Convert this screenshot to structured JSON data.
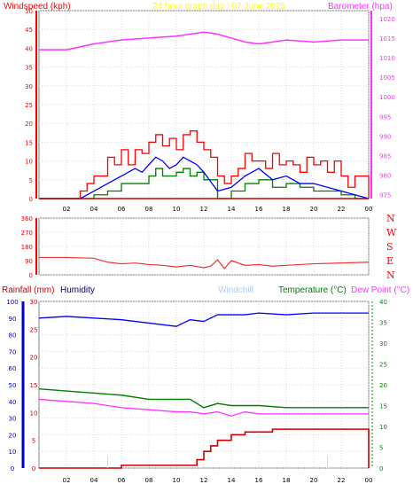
{
  "header": {
    "left_title": "Windspeed (kph)",
    "center_title": "24 hour graph day : 07 June 2025",
    "right_title": "Barometer (hpa)"
  },
  "bottom_header": {
    "rain_title": "Rainfall (mm)",
    "humidity_title": "Humidity",
    "windchill_title": "Windchill",
    "temp_title": "Temperature (°C)",
    "dew_title": "Dew Point (°C)"
  },
  "colors": {
    "wind_axis": "#ff3333",
    "baro": "#ff33ff",
    "gust": "#ff0000",
    "avg": "#0000ff",
    "green": "#008000",
    "center": "#ffff00",
    "windchill": "#aaccff",
    "rain": "#cc0000",
    "humidity_axis": "#0000cc",
    "temp_axis": "#008800",
    "grid": "#d8d8d8",
    "axis_text": "#ff0000",
    "box": "#808080"
  },
  "chart_data": [
    {
      "id": "wind_baro",
      "type": "line",
      "x_ticks": [
        "02",
        "04",
        "06",
        "08",
        "10",
        "12",
        "14",
        "16",
        "18",
        "20",
        "22",
        "00"
      ],
      "y_left": {
        "label": "Windspeed (kph)",
        "ticks": [
          "0",
          "5",
          "10",
          "15",
          "20",
          "25",
          "30",
          "35",
          "40",
          "45",
          "50"
        ],
        "range": [
          0,
          50
        ]
      },
      "y_right": {
        "label": "Barometer (hpa)",
        "ticks": [
          "975",
          "980",
          "985",
          "990",
          "995",
          "1000",
          "1005",
          "1010",
          "1015",
          "1020"
        ],
        "range": [
          974,
          1022
        ]
      },
      "series": [
        {
          "name": "Barometer (hpa)",
          "x": [
            0,
            2,
            4,
            6,
            8,
            10,
            12,
            13,
            14,
            15,
            16,
            17,
            18,
            20,
            22,
            24
          ],
          "y": [
            1012,
            1012,
            1013.5,
            1014.5,
            1015,
            1015.5,
            1016.5,
            1016,
            1015,
            1014,
            1013.5,
            1014,
            1014.5,
            1014,
            1014.5,
            1014.5
          ]
        },
        {
          "name": "gust",
          "x": [
            0,
            1,
            2,
            3,
            3.5,
            4,
            4.5,
            5,
            5.5,
            6,
            6.5,
            7,
            7.5,
            8,
            8.5,
            9,
            9.5,
            10,
            10.5,
            11,
            11.5,
            12,
            12.5,
            13,
            13.5,
            14,
            14.5,
            15,
            15.5,
            16,
            16.5,
            17,
            17.5,
            18,
            18.5,
            19,
            19.5,
            20,
            20.5,
            21,
            21.5,
            22,
            22.5,
            23,
            24
          ],
          "y": [
            0,
            0,
            0,
            2,
            4,
            6,
            6,
            11,
            9,
            13,
            9,
            13,
            12,
            15,
            17,
            14,
            16,
            13,
            17,
            18,
            15,
            13,
            11,
            6,
            4,
            6,
            8,
            12,
            10,
            10,
            8,
            12,
            9,
            10,
            9,
            7,
            11,
            9,
            10,
            7,
            10,
            6,
            3,
            6,
            0
          ]
        },
        {
          "name": "average",
          "x": [
            0,
            2,
            3,
            3.5,
            4,
            5,
            6,
            7,
            7.5,
            8,
            8.5,
            9,
            9.5,
            10,
            10.5,
            11,
            11.5,
            12,
            13,
            14,
            15,
            16,
            17,
            18,
            19,
            20,
            21,
            22,
            23,
            24
          ],
          "y": [
            0,
            0,
            0,
            1,
            2,
            4,
            6,
            8,
            7,
            9,
            11,
            10,
            8,
            9,
            11,
            10,
            9,
            7,
            2,
            3,
            6,
            8,
            5,
            6,
            4,
            4,
            3,
            2,
            1,
            0
          ]
        },
        {
          "name": "green",
          "x": [
            0,
            3,
            4,
            5,
            6,
            7,
            8,
            8.5,
            9,
            9.5,
            10,
            10.5,
            11,
            11.5,
            12,
            13,
            14,
            15,
            16,
            17,
            18,
            19,
            20,
            21,
            22,
            23,
            24
          ],
          "y": [
            0,
            0,
            1,
            2,
            4,
            4,
            6,
            8,
            6,
            6,
            7,
            8,
            6,
            7,
            5,
            0,
            2,
            4,
            5,
            3,
            4,
            3,
            2,
            2,
            1,
            0,
            0
          ]
        }
      ]
    },
    {
      "id": "direction",
      "type": "line",
      "x_ticks": [
        "02",
        "04",
        "06",
        "08",
        "10",
        "12",
        "14",
        "16",
        "18",
        "20",
        "22",
        "00"
      ],
      "y_ticks": [
        "360",
        "270",
        "180",
        "90",
        "0"
      ],
      "letters": [
        "N",
        "W",
        "S",
        "E",
        "N"
      ],
      "range": [
        0,
        360
      ],
      "series": [
        {
          "name": "direction",
          "x": [
            0,
            2,
            4,
            5,
            6,
            7,
            8,
            9,
            10,
            11,
            12,
            12.5,
            13,
            13.5,
            14,
            15,
            16,
            17,
            18,
            19,
            20,
            22,
            24
          ],
          "y": [
            110,
            110,
            105,
            80,
            70,
            75,
            65,
            60,
            50,
            60,
            45,
            55,
            95,
            40,
            90,
            60,
            65,
            55,
            60,
            65,
            70,
            75,
            80
          ]
        }
      ]
    },
    {
      "id": "temp_hum_rain",
      "type": "line",
      "x_ticks": [
        "02",
        "04",
        "06",
        "08",
        "10",
        "12",
        "14",
        "16",
        "18",
        "20",
        "22",
        "00"
      ],
      "y_left_rain": {
        "ticks": [
          "0",
          "5",
          "10",
          "15",
          "20",
          "25",
          "30"
        ],
        "range": [
          0,
          30
        ]
      },
      "y_left_humidity": {
        "ticks": [
          "0",
          "10",
          "20",
          "30",
          "40",
          "50",
          "60",
          "70",
          "80",
          "90",
          "100"
        ],
        "range": [
          0,
          100
        ]
      },
      "y_right_temp": {
        "ticks": [
          "0",
          "5",
          "10",
          "15",
          "20",
          "25",
          "30",
          "35",
          "40"
        ],
        "range": [
          0,
          40
        ]
      },
      "series": [
        {
          "name": "Humidity",
          "x": [
            0,
            2,
            4,
            6,
            8,
            9,
            10,
            11,
            12,
            13,
            14,
            15,
            16,
            18,
            20,
            22,
            24
          ],
          "y": [
            90,
            91,
            90,
            89,
            87,
            86,
            85,
            89,
            88,
            92,
            92,
            92,
            93,
            92,
            93,
            93,
            93
          ]
        },
        {
          "name": "Temperature (°C)",
          "x": [
            0,
            2,
            4,
            6,
            8,
            10,
            11,
            12,
            13,
            14,
            16,
            18,
            20,
            22,
            24
          ],
          "y": [
            19,
            18.5,
            18,
            17.5,
            16.5,
            16.5,
            16.5,
            14.5,
            15.5,
            15,
            15,
            14.5,
            14.5,
            14.5,
            14.5
          ]
        },
        {
          "name": "Dew Point (°C)",
          "x": [
            0,
            2,
            4,
            6,
            8,
            10,
            11,
            12,
            13,
            14,
            15,
            16,
            18,
            20,
            22,
            24
          ],
          "y": [
            16.5,
            16,
            15.5,
            14.5,
            14,
            13.5,
            13.5,
            13,
            13.5,
            12.5,
            13.5,
            13,
            13,
            13,
            13,
            13
          ]
        },
        {
          "name": "Rainfall (mm)",
          "x": [
            0,
            5,
            6,
            7,
            8,
            9,
            10,
            11,
            11.5,
            12,
            12.5,
            13,
            14,
            15,
            16,
            17,
            18,
            19,
            20,
            21,
            22,
            23,
            24,
            24
          ],
          "y": [
            0,
            0,
            0.5,
            0.5,
            0.5,
            0.5,
            0.5,
            0.5,
            1.5,
            3,
            4,
            5,
            6,
            6.5,
            6.5,
            7,
            7,
            7,
            7,
            7,
            7,
            7,
            7,
            0
          ]
        }
      ]
    }
  ]
}
